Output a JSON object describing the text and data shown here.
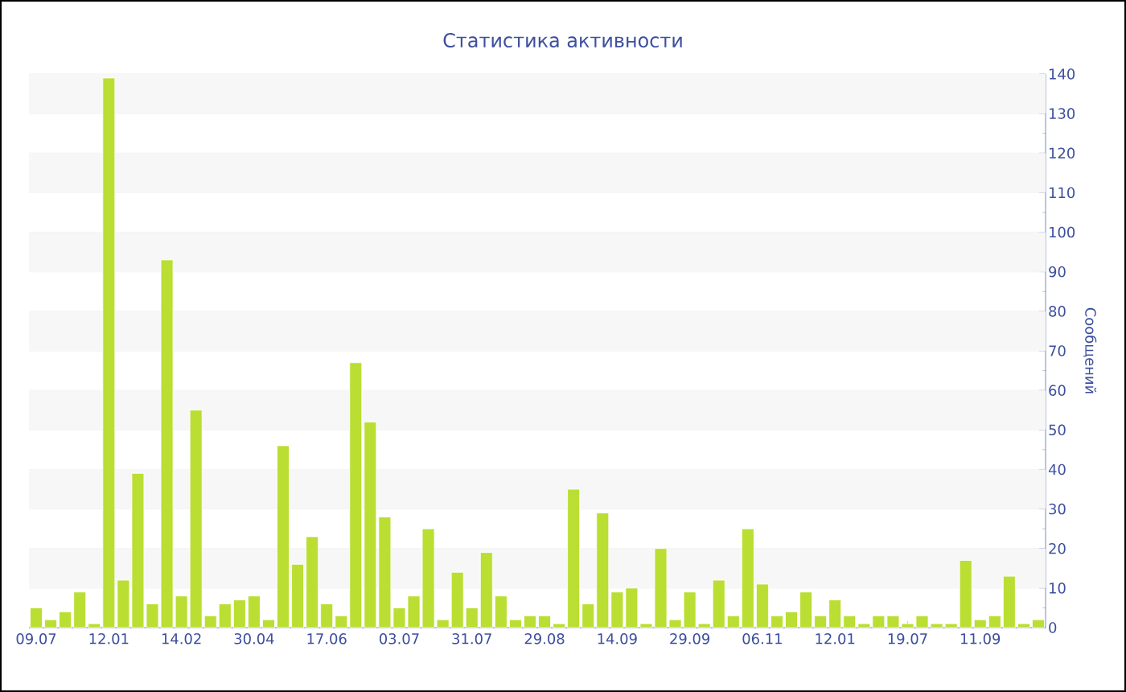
{
  "chart_data": {
    "type": "bar",
    "title": "Статистика активности",
    "ylabel": "Сообщений",
    "categories": [
      "09.07",
      null,
      null,
      null,
      null,
      "12.01",
      null,
      null,
      null,
      null,
      "14.02",
      null,
      null,
      null,
      null,
      "30.04",
      null,
      null,
      null,
      null,
      "17.06",
      null,
      null,
      null,
      null,
      "03.07",
      null,
      null,
      null,
      null,
      "31.07",
      null,
      null,
      null,
      null,
      "29.08",
      null,
      null,
      null,
      null,
      "14.09",
      null,
      null,
      null,
      null,
      "29.09",
      null,
      null,
      null,
      null,
      "06.11",
      null,
      null,
      null,
      null,
      "12.01",
      null,
      null,
      null,
      null,
      "19.07",
      null,
      null,
      null,
      null,
      "11.09",
      null,
      null,
      null,
      null
    ],
    "values": [
      5,
      2,
      4,
      9,
      1,
      139,
      12,
      39,
      6,
      93,
      8,
      55,
      3,
      6,
      7,
      8,
      2,
      46,
      16,
      23,
      6,
      3,
      67,
      52,
      28,
      5,
      8,
      25,
      2,
      14,
      5,
      19,
      8,
      2,
      3,
      3,
      1,
      35,
      6,
      29,
      9,
      10,
      1,
      20,
      2,
      9,
      1,
      12,
      3,
      25,
      11,
      3,
      4,
      9,
      3,
      7,
      3,
      1,
      3,
      3,
      1,
      3,
      1,
      1,
      17,
      2,
      3,
      13,
      1,
      2
    ],
    "color": "#bade32",
    "ylim": [
      0,
      140
    ],
    "yticks": [
      0,
      10,
      20,
      30,
      40,
      50,
      60,
      70,
      80,
      90,
      100,
      110,
      120,
      130,
      140
    ],
    "grid": "y"
  }
}
